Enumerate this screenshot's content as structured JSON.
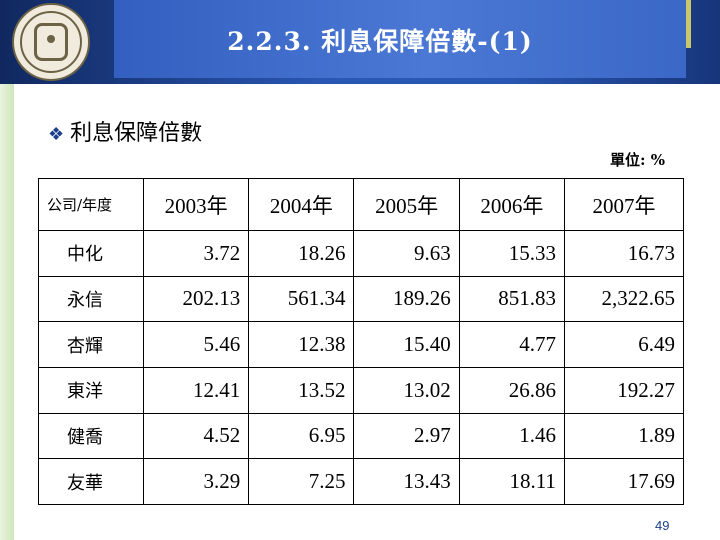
{
  "header": {
    "title": "2.2.3. 利息保障倍數-(1)"
  },
  "subheading": {
    "bullet": "❖",
    "text": "利息保障倍數"
  },
  "unit_label": "單位: %",
  "table": {
    "corner_header": "公司/年度",
    "years": [
      "2003年",
      "2004年",
      "2005年",
      "2006年",
      "2007年"
    ],
    "rows": [
      {
        "company": "中化",
        "values": [
          "3.72",
          "18.26",
          "9.63",
          "15.33",
          "16.73"
        ]
      },
      {
        "company": "永信",
        "values": [
          "202.13",
          "561.34",
          "189.26",
          "851.83",
          "2,322.65"
        ]
      },
      {
        "company": "杏輝",
        "values": [
          "5.46",
          "12.38",
          "15.40",
          "4.77",
          "6.49"
        ]
      },
      {
        "company": "東洋",
        "values": [
          "12.41",
          "13.52",
          "13.02",
          "26.86",
          "192.27"
        ]
      },
      {
        "company": "健喬",
        "values": [
          "4.52",
          "6.95",
          "2.97",
          "1.46",
          "1.89"
        ]
      },
      {
        "company": "友華",
        "values": [
          "3.29",
          "7.25",
          "13.43",
          "18.11",
          "17.69"
        ]
      }
    ]
  },
  "page_number": "49",
  "icons": {
    "logo": "university-seal-icon",
    "bullet": "diamond-bullet-icon"
  },
  "colors": {
    "header_blue": "#1c3f8c",
    "accent": "#c8c76a",
    "stripe_green": "#cfe6b9"
  }
}
